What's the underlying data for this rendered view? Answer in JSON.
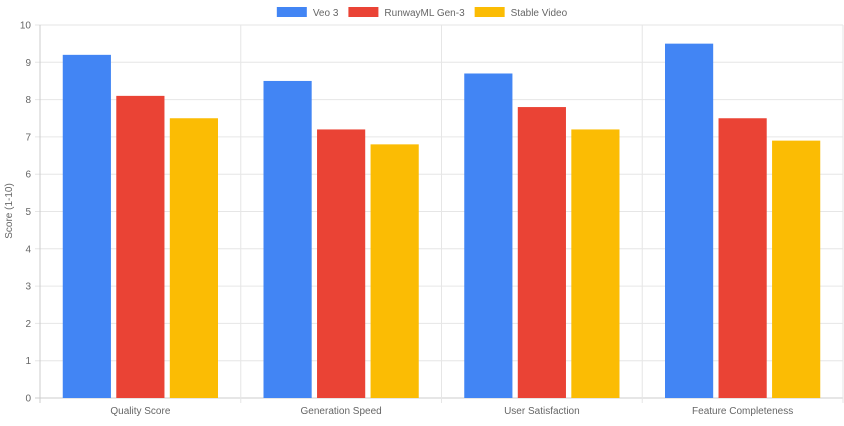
{
  "chart_data": {
    "type": "bar",
    "title": "",
    "xlabel": "",
    "ylabel": "Score (1-10)",
    "ylim": [
      0,
      10
    ],
    "yticks": [
      0,
      1,
      2,
      3,
      4,
      5,
      6,
      7,
      8,
      9,
      10
    ],
    "grid": true,
    "legend_position": "top-center",
    "categories": [
      "Quality Score",
      "Generation Speed",
      "User Satisfaction",
      "Feature Completeness"
    ],
    "series": [
      {
        "name": "Veo 3",
        "color": "#4285f4",
        "values": [
          9.2,
          8.5,
          8.7,
          9.5
        ]
      },
      {
        "name": "RunwayML Gen-3",
        "color": "#ea4335",
        "values": [
          8.1,
          7.2,
          7.8,
          7.5
        ]
      },
      {
        "name": "Stable Video",
        "color": "#fbbc04",
        "values": [
          7.5,
          6.8,
          7.2,
          6.9
        ]
      }
    ]
  }
}
